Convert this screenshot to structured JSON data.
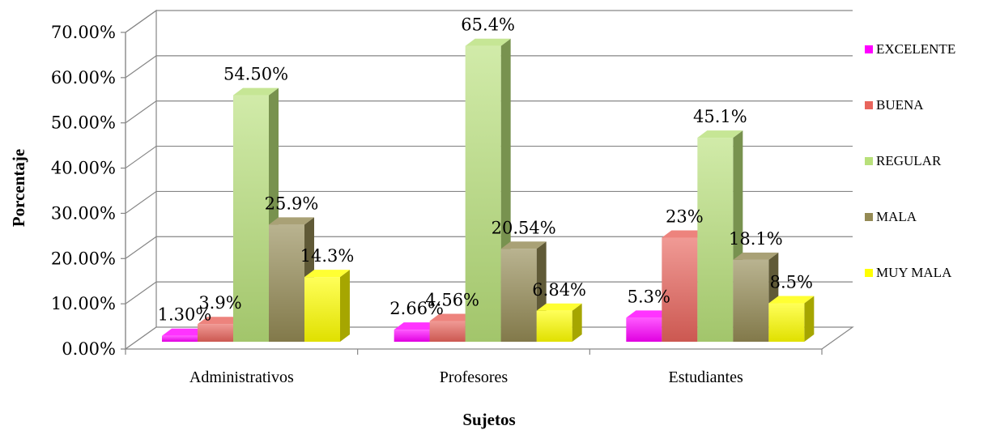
{
  "chart_data": {
    "type": "bar",
    "title": "",
    "xlabel": "Sujetos",
    "ylabel": "Porcentaje",
    "ylim": [
      0,
      70
    ],
    "yticks": [
      "0.00%",
      "10.00%",
      "20.00%",
      "30.00%",
      "40.00%",
      "50.00%",
      "60.00%",
      "70.00%"
    ],
    "categories": [
      "Administrativos",
      "Profesores",
      "Estudiantes"
    ],
    "series": [
      {
        "name": "EXCELENTE",
        "color": "#FF00FF",
        "values": [
          1.3,
          2.66,
          5.3
        ],
        "labels": [
          "1.30%",
          "2.66%",
          "5.3%"
        ]
      },
      {
        "name": "BUENA",
        "color": "#E8645C",
        "values": [
          3.9,
          4.56,
          23
        ],
        "labels": [
          "3.9%",
          "4.56%",
          "23%"
        ]
      },
      {
        "name": "REGULAR",
        "color": "#B8E07A",
        "values": [
          54.5,
          65.4,
          45.1
        ],
        "labels": [
          "54.50%",
          "65.4%",
          "45.1%"
        ]
      },
      {
        "name": "MALA",
        "color": "#948A54",
        "values": [
          25.9,
          20.54,
          18.1
        ],
        "labels": [
          "25.9%",
          "20.54%",
          "18.1%"
        ]
      },
      {
        "name": "MUY MALA",
        "color": "#FFFF00",
        "values": [
          14.3,
          6.84,
          8.5
        ],
        "labels": [
          "14.3%",
          "6.84%",
          "8.5%"
        ]
      }
    ],
    "grid": true,
    "legend_position": "right",
    "style": "3d-clustered-column"
  }
}
